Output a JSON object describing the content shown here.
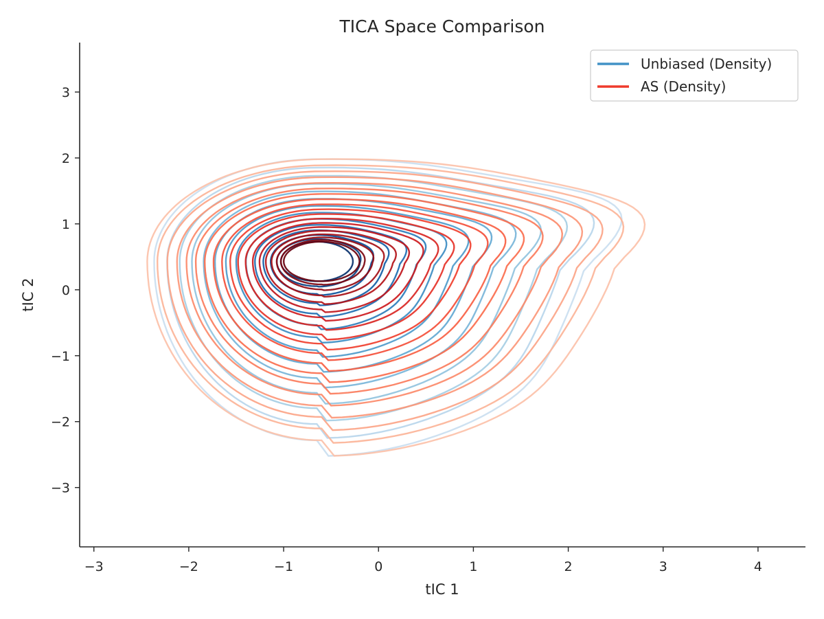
{
  "chart_data": {
    "type": "contour",
    "title": "TICA Space Comparison",
    "xlabel": "tIC 1",
    "ylabel": "tIC 2",
    "xlim": [
      -3.15,
      4.5
    ],
    "ylim": [
      -3.9,
      3.75
    ],
    "xticks": [
      -3,
      -2,
      -1,
      0,
      1,
      2,
      3,
      4
    ],
    "yticks": [
      -3,
      -2,
      -1,
      0,
      1,
      2,
      3
    ],
    "xtick_labels": [
      "−3",
      "−2",
      "−1",
      "0",
      "1",
      "2",
      "3",
      "4"
    ],
    "ytick_labels": [
      "−3",
      "−2",
      "−1",
      "0",
      "1",
      "2",
      "3"
    ],
    "grid": false,
    "legend_position": "top-right",
    "series": [
      {
        "name": "Unbiased (Density)",
        "color": "#4292c6",
        "colormap": "Blues",
        "peak": [
          -0.65,
          0.43
        ],
        "levels": 14
      },
      {
        "name": "AS (Density)",
        "color": "#ef3b2c",
        "colormap": "Reds",
        "peak": [
          -0.6,
          0.43
        ],
        "levels": 19
      }
    ]
  }
}
